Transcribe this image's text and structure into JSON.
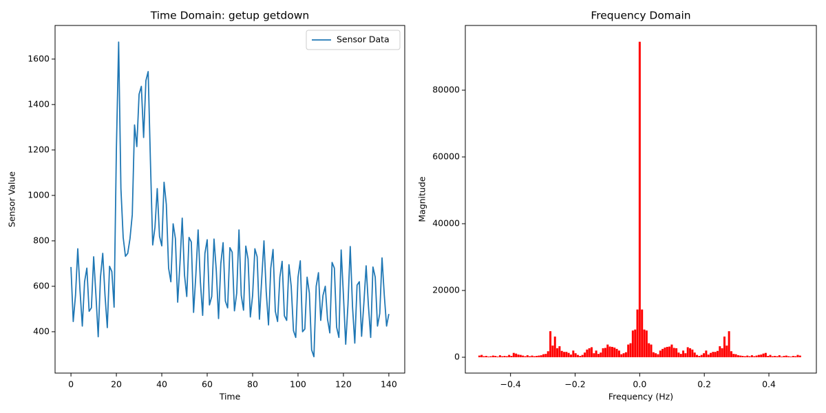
{
  "chart_data": [
    {
      "type": "line",
      "title": "Time Domain: getup getdown",
      "xlabel": "Time",
      "ylabel": "Sensor Value",
      "x": [
        0,
        1,
        2,
        3,
        4,
        5,
        6,
        7,
        8,
        9,
        10,
        11,
        12,
        13,
        14,
        15,
        16,
        17,
        18,
        19,
        20,
        21,
        22,
        23,
        24,
        25,
        26,
        27,
        28,
        29,
        30,
        31,
        32,
        33,
        34,
        35,
        36,
        37,
        38,
        39,
        40,
        41,
        42,
        43,
        44,
        45,
        46,
        47,
        48,
        49,
        50,
        51,
        52,
        53,
        54,
        55,
        56,
        57,
        58,
        59,
        60,
        61,
        62,
        63,
        64,
        65,
        66,
        67,
        68,
        69,
        70,
        71,
        72,
        73,
        74,
        75,
        76,
        77,
        78,
        79,
        80,
        81,
        82,
        83,
        84,
        85,
        86,
        87,
        88,
        89,
        90,
        91,
        92,
        93,
        94,
        95,
        96,
        97,
        98,
        99,
        100,
        101,
        102,
        103,
        104,
        105,
        106,
        107,
        108,
        109,
        110,
        111,
        112,
        113,
        114,
        115,
        116,
        117,
        118,
        119,
        120,
        121,
        122,
        123,
        124,
        125,
        126,
        127,
        128,
        129,
        130,
        131,
        132,
        133,
        134,
        135,
        136,
        137,
        138,
        139,
        140
      ],
      "series": [
        {
          "name": "Sensor Data",
          "color": "#1f77b4",
          "values": [
            685,
            445,
            560,
            765,
            580,
            425,
            620,
            680,
            490,
            505,
            730,
            560,
            378,
            640,
            745,
            560,
            418,
            688,
            665,
            508,
            1200,
            1675,
            1030,
            815,
            732,
            745,
            810,
            915,
            1310,
            1215,
            1445,
            1480,
            1255,
            1505,
            1545,
            1150,
            782,
            860,
            1030,
            820,
            778,
            1058,
            960,
            680,
            620,
            875,
            810,
            530,
            700,
            900,
            650,
            555,
            815,
            795,
            485,
            650,
            848,
            620,
            472,
            745,
            805,
            518,
            555,
            808,
            670,
            458,
            700,
            792,
            535,
            505,
            770,
            750,
            492,
            570,
            848,
            560,
            495,
            777,
            720,
            465,
            560,
            765,
            730,
            455,
            630,
            800,
            575,
            430,
            680,
            762,
            490,
            445,
            640,
            710,
            470,
            450,
            695,
            600,
            405,
            375,
            640,
            712,
            400,
            412,
            640,
            570,
            320,
            290,
            600,
            660,
            450,
            560,
            600,
            455,
            395,
            705,
            680,
            420,
            375,
            760,
            560,
            345,
            520,
            775,
            510,
            350,
            605,
            620,
            380,
            525,
            690,
            515,
            375,
            685,
            640,
            425,
            480,
            725,
            560,
            425,
            478
          ]
        }
      ],
      "xlim": [
        -7,
        147
      ],
      "ylim": [
        218,
        1748
      ],
      "xticks": [
        0,
        20,
        40,
        60,
        80,
        100,
        120,
        140
      ],
      "yticks": [
        400,
        600,
        800,
        1000,
        1200,
        1400,
        1600
      ],
      "legend": "upper right"
    },
    {
      "type": "bar",
      "title": "Frequency Domain",
      "xlabel": "Frequency (Hz)",
      "ylabel": "Magnitude",
      "color": "#ff0000",
      "x": [
        -0.4965,
        -0.4894,
        -0.4823,
        -0.4752,
        -0.4681,
        -0.461,
        -0.4539,
        -0.4468,
        -0.4397,
        -0.4326,
        -0.4255,
        -0.4184,
        -0.4113,
        -0.4043,
        -0.3972,
        -0.3901,
        -0.383,
        -0.3759,
        -0.3688,
        -0.3617,
        -0.3546,
        -0.3475,
        -0.3404,
        -0.3333,
        -0.3262,
        -0.3191,
        -0.3121,
        -0.305,
        -0.2979,
        -0.2908,
        -0.2837,
        -0.2766,
        -0.2695,
        -0.2624,
        -0.2553,
        -0.2482,
        -0.2411,
        -0.234,
        -0.227,
        -0.2199,
        -0.2128,
        -0.2057,
        -0.1986,
        -0.1915,
        -0.1844,
        -0.1773,
        -0.1702,
        -0.1631,
        -0.156,
        -0.1489,
        -0.1418,
        -0.1348,
        -0.1277,
        -0.1206,
        -0.1135,
        -0.1064,
        -0.0993,
        -0.0922,
        -0.0851,
        -0.078,
        -0.0709,
        -0.0638,
        -0.0567,
        -0.0496,
        -0.0426,
        -0.0355,
        -0.0284,
        -0.0213,
        -0.0142,
        -0.0071,
        0,
        0.0071,
        0.0142,
        0.0213,
        0.0284,
        0.0355,
        0.0426,
        0.0496,
        0.0567,
        0.0638,
        0.0709,
        0.078,
        0.0851,
        0.0922,
        0.0993,
        0.1064,
        0.1135,
        0.1206,
        0.1277,
        0.1348,
        0.1418,
        0.1489,
        0.156,
        0.1631,
        0.1702,
        0.1773,
        0.1844,
        0.1915,
        0.1986,
        0.2057,
        0.2128,
        0.2199,
        0.227,
        0.234,
        0.2411,
        0.2482,
        0.2553,
        0.2624,
        0.2695,
        0.2766,
        0.2837,
        0.2908,
        0.2979,
        0.305,
        0.3121,
        0.3191,
        0.3262,
        0.3333,
        0.3404,
        0.3475,
        0.3546,
        0.3617,
        0.3688,
        0.3759,
        0.383,
        0.3901,
        0.3972,
        0.4043,
        0.4113,
        0.4184,
        0.4255,
        0.4326,
        0.4397,
        0.4468,
        0.4539,
        0.461,
        0.4681,
        0.4752,
        0.4823,
        0.4894,
        0.4965
      ],
      "values": [
        500,
        700,
        300,
        400,
        200,
        300,
        500,
        400,
        200,
        600,
        300,
        400,
        300,
        700,
        400,
        1300,
        1100,
        800,
        700,
        500,
        300,
        600,
        300,
        500,
        300,
        400,
        500,
        600,
        900,
        1000,
        1800,
        7800,
        3500,
        6200,
        2700,
        3300,
        1900,
        1600,
        1600,
        1300,
        800,
        2000,
        1200,
        700,
        400,
        700,
        1400,
        2300,
        2700,
        3000,
        1200,
        2000,
        1000,
        1400,
        2700,
        2800,
        3800,
        3200,
        3100,
        2900,
        2500,
        2000,
        900,
        1200,
        1500,
        3800,
        4200,
        8000,
        8300,
        14300,
        94500,
        14300,
        8300,
        8000,
        4200,
        3800,
        1500,
        1200,
        900,
        2000,
        2500,
        2900,
        3100,
        3200,
        3800,
        2800,
        2700,
        1400,
        1000,
        2000,
        1200,
        3000,
        2700,
        2300,
        1400,
        700,
        400,
        700,
        1200,
        2000,
        800,
        1300,
        1600,
        1600,
        1900,
        3300,
        2700,
        6200,
        3500,
        7800,
        1800,
        1000,
        900,
        600,
        500,
        400,
        300,
        500,
        300,
        600,
        300,
        500,
        700,
        800,
        1100,
        1300,
        400,
        700,
        300,
        400,
        300,
        600,
        200,
        400,
        500,
        300,
        200,
        400,
        300,
        700,
        500
      ],
      "xlim": [
        -0.54,
        0.547
      ],
      "ylim": [
        -4742,
        99381
      ],
      "xticks": [
        {
          "value": -0.4,
          "label": "−0.4"
        },
        {
          "value": -0.2,
          "label": "−0.2"
        },
        {
          "value": 0,
          "label": "0.0"
        },
        0.2,
        0.4
      ],
      "yticks": [
        0,
        20000,
        40000,
        60000,
        80000
      ]
    }
  ]
}
